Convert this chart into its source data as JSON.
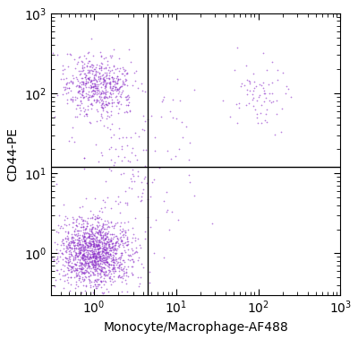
{
  "xlabel": "Monocyte/Macrophage-AF488",
  "ylabel": "CD44-PE",
  "dot_color": "#8B2FC9",
  "dot_alpha": 0.6,
  "dot_size": 1.5,
  "xlim": [
    0.3,
    1000
  ],
  "ylim": [
    0.3,
    1000
  ],
  "gate_x": 4.5,
  "gate_y": 12.0,
  "background_color": "#ffffff",
  "cluster1_log10x_mean": 0.0,
  "cluster1_log10x_std": 0.22,
  "cluster1_log10y_mean": 0.0,
  "cluster1_log10y_std": 0.22,
  "cluster1_n": 1400,
  "cluster2_log10x_mean": 0.05,
  "cluster2_log10x_std": 0.2,
  "cluster2_log10y_mean": 2.1,
  "cluster2_log10y_std": 0.18,
  "cluster2_n": 550,
  "cluster3_log10x_mean": 2.0,
  "cluster3_log10x_std": 0.18,
  "cluster3_log10y_mean": 2.0,
  "cluster3_log10y_std": 0.18,
  "cluster3_n": 75,
  "scatter1_log10x_mean": 0.5,
  "scatter1_log10x_std": 0.4,
  "scatter1_log10y_mean": 1.2,
  "scatter1_log10y_std": 0.5,
  "scatter1_n": 150
}
